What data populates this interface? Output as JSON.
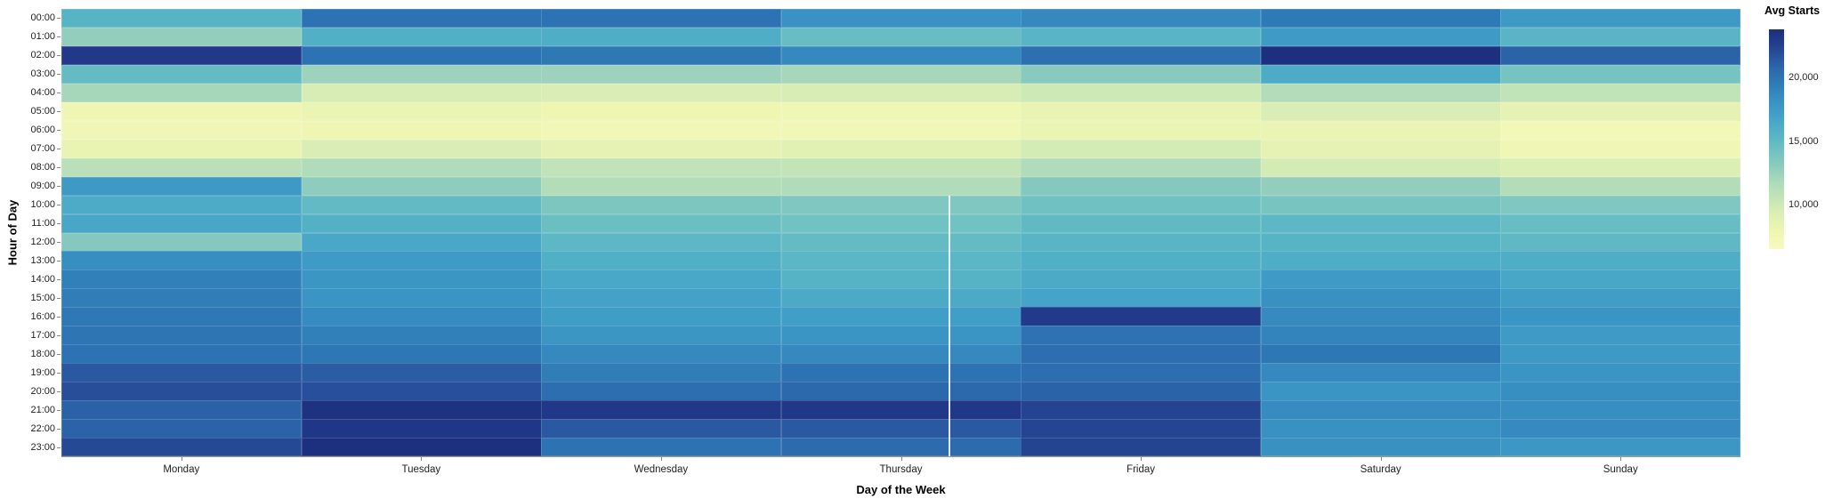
{
  "axes": {
    "x_title": "Day of the Week",
    "y_title": "Hour of Day"
  },
  "legend": {
    "title": "Avg Starts"
  },
  "chart_data": {
    "type": "heatmap",
    "x_categories": [
      "Monday",
      "Tuesday",
      "Wednesday",
      "Thursday",
      "Friday",
      "Saturday",
      "Sunday"
    ],
    "y_categories": [
      "00:00",
      "01:00",
      "02:00",
      "03:00",
      "04:00",
      "05:00",
      "06:00",
      "07:00",
      "08:00",
      "09:00",
      "10:00",
      "11:00",
      "12:00",
      "13:00",
      "14:00",
      "15:00",
      "16:00",
      "17:00",
      "18:00",
      "19:00",
      "20:00",
      "21:00",
      "22:00",
      "23:00"
    ],
    "x_title": "Day of the Week",
    "y_title": "Hour of Day",
    "legend_title": "Avg Starts",
    "values_by_hour": [
      [
        15500,
        20000,
        20000,
        18100,
        18700,
        19600,
        17600
      ],
      [
        12800,
        15900,
        16000,
        14700,
        15400,
        17500,
        15400
      ],
      [
        23000,
        20000,
        19700,
        18700,
        20200,
        23700,
        20900
      ],
      [
        14800,
        12400,
        12400,
        12000,
        13200,
        16200,
        14000
      ],
      [
        12000,
        9500,
        9400,
        9500,
        10000,
        11400,
        10700
      ],
      [
        7800,
        8200,
        7900,
        7700,
        8300,
        9400,
        8600
      ],
      [
        7500,
        7800,
        7400,
        7400,
        8200,
        8200,
        7300
      ],
      [
        8300,
        9400,
        8600,
        8900,
        9700,
        8600,
        7600
      ],
      [
        11100,
        11600,
        10700,
        10500,
        11600,
        9700,
        9300
      ],
      [
        17600,
        13000,
        11400,
        11600,
        13400,
        12800,
        11400
      ],
      [
        16200,
        14900,
        13700,
        13600,
        14300,
        13900,
        13600
      ],
      [
        16600,
        15700,
        14500,
        14200,
        15000,
        15200,
        14700
      ],
      [
        13400,
        16500,
        15200,
        14800,
        15400,
        15500,
        15100
      ],
      [
        18400,
        17400,
        15900,
        15300,
        15900,
        16000,
        16000
      ],
      [
        19200,
        17800,
        16500,
        15600,
        16300,
        17500,
        16600
      ],
      [
        19400,
        17900,
        16900,
        16300,
        16700,
        18200,
        17300
      ],
      [
        19700,
        18500,
        17300,
        17200,
        22900,
        18600,
        17900
      ],
      [
        19900,
        19200,
        17800,
        17900,
        20000,
        19000,
        17400
      ],
      [
        20100,
        19800,
        18700,
        18700,
        20300,
        19800,
        17600
      ],
      [
        21400,
        21200,
        19400,
        20100,
        20300,
        18700,
        17900
      ],
      [
        21900,
        21800,
        20300,
        20700,
        20900,
        17900,
        18400
      ],
      [
        21000,
        23600,
        23100,
        23100,
        22400,
        18500,
        18400
      ],
      [
        20900,
        23200,
        21400,
        21400,
        22300,
        18200,
        18600
      ],
      [
        22100,
        23700,
        20100,
        20500,
        22400,
        18200,
        17700
      ]
    ],
    "color_scale": {
      "scheme": "yellow-green-blue",
      "domain": [
        6500,
        23800
      ],
      "stops": [
        {
          "t": 0.0,
          "color": "#f7fabf"
        },
        {
          "t": 0.08,
          "color": "#eef6b2"
        },
        {
          "t": 0.15,
          "color": "#dff0b4"
        },
        {
          "t": 0.22,
          "color": "#c7e6b6"
        },
        {
          "t": 0.3,
          "color": "#aedbba"
        },
        {
          "t": 0.38,
          "color": "#8ccbbe"
        },
        {
          "t": 0.45,
          "color": "#6fc1c2"
        },
        {
          "t": 0.52,
          "color": "#57b4c5"
        },
        {
          "t": 0.6,
          "color": "#44a2c8"
        },
        {
          "t": 0.68,
          "color": "#3890c2"
        },
        {
          "t": 0.76,
          "color": "#2e79b6"
        },
        {
          "t": 0.82,
          "color": "#2c68ac"
        },
        {
          "t": 0.88,
          "color": "#29519c"
        },
        {
          "t": 0.94,
          "color": "#223c8b"
        },
        {
          "t": 1.0,
          "color": "#1c2f7f"
        }
      ],
      "legend_ticks": [
        {
          "value": 20000,
          "label": "20,000"
        },
        {
          "value": 15000,
          "label": "15,000"
        },
        {
          "value": 10000,
          "label": "10,000"
        }
      ]
    }
  }
}
